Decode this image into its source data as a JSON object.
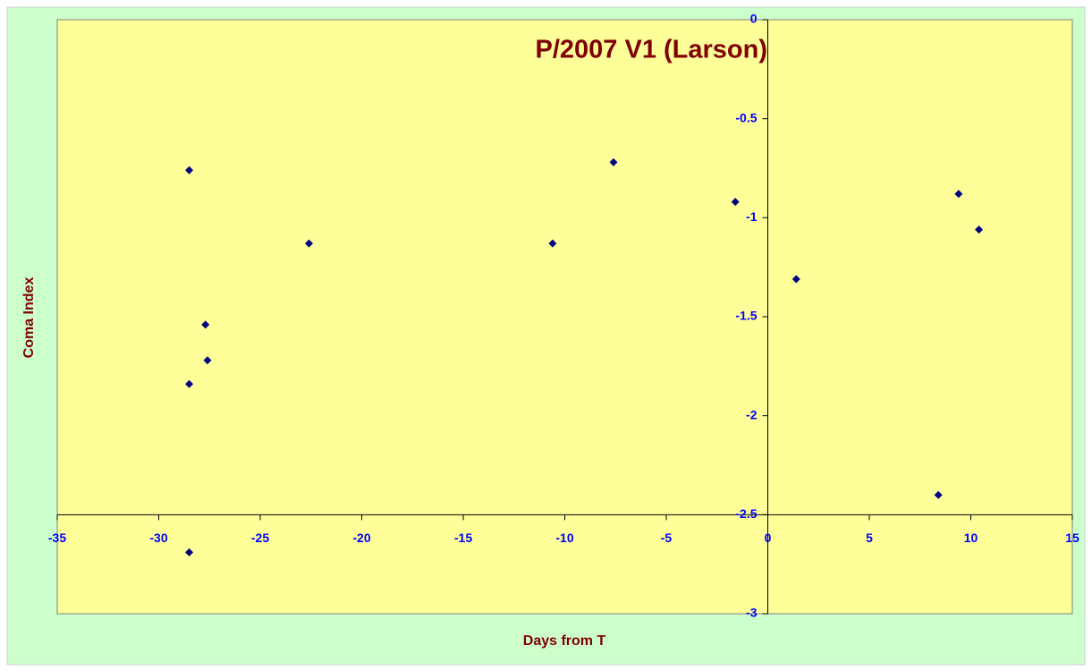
{
  "chart_data": {
    "type": "scatter",
    "title": "P/2007 V1 (Larson)",
    "x_label": "Days from T",
    "y_label": "Coma Index",
    "series": [
      {
        "name": "Coma Index",
        "color": "#000080",
        "x": [
          -28.5,
          -22.6,
          -7.6,
          -10.6,
          -1.6,
          -27.7,
          -27.6,
          -28.5,
          -28.5,
          1.4,
          9.4,
          10.4,
          8.4
        ],
        "values": [
          -0.76,
          -1.13,
          -0.72,
          -1.13,
          -0.92,
          -1.54,
          -1.72,
          -1.84,
          -2.69,
          -1.31,
          -0.88,
          -1.06,
          -2.4
        ]
      }
    ],
    "xlim": [
      -35,
      15
    ],
    "xticks": [
      -35,
      -30,
      -25,
      -20,
      -15,
      -10,
      -5,
      0,
      5,
      10,
      15
    ],
    "ylim": [
      -3,
      0
    ],
    "yticks": [
      0,
      -0.5,
      -1,
      -1.5,
      -2,
      -2.5,
      -3
    ],
    "x_axis_crosses_y": -2.5,
    "y_axis_crosses_x": 0,
    "grid": false,
    "plot_color": "#ffff99",
    "background": "#ccffcc"
  }
}
